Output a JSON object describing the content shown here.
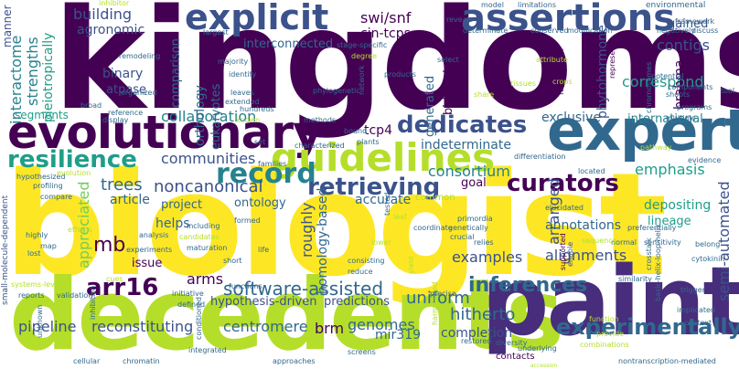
{
  "colors": {
    "background": "#ffffff",
    "kingdoms": "#440154",
    "biologist": "#fde725",
    "decedents": "#b5de2b",
    "paint": "#472d7b",
    "expert": "#31688e",
    "evolutionary": "#440154",
    "guidelines": "#b5de2b",
    "assertions": "#3b528b",
    "explicit": "#3b528b"
  },
  "words": {
    "kingdoms": "kingdoms",
    "biologist": "biologist",
    "decedents": "decedents",
    "paint": "paint",
    "expert": "expert",
    "evolutionary": "evolutionary",
    "guidelines": "guidelines",
    "assertions": "assertions",
    "explicit": "explicit",
    "record": "record",
    "retrieving": "retrieving",
    "dedicates": "dedicates",
    "curators": "curators",
    "resilience": "resilience",
    "experimentally": "experimentally",
    "software_assisted": "software-assisted",
    "arr16": "arr16",
    "inferences": "inferences",
    "hitherto": "hitherto",
    "uniform": "uniform",
    "collaboration": "collaboration",
    "communities": "communities",
    "noncanonical": "noncanonical",
    "trees": "trees",
    "mb": "mb",
    "pipeline": "pipeline",
    "reconstituting": "reconstituting",
    "centromere": "centromere",
    "brm": "brm",
    "genomes": "genomes",
    "mir319": "mir319",
    "completion": "completion",
    "contigs": "contigs",
    "correspond": "correspond",
    "emphasis": "emphasis",
    "consortium": "consortium",
    "depositing": "depositing",
    "alignments": "alignments",
    "examples": "examples",
    "annotations": "annotations",
    "lineage": "lineage",
    "international": "international",
    "exclusive": "exclusive",
    "indeterminate": "indeterminate",
    "building": "building",
    "agronomic": "agronomic",
    "interconnected": "interconnected",
    "swi_snf": "swi/snf",
    "cin_tcps": "cin-tcps",
    "tcp4": "tcp4",
    "arms": "arms",
    "hypothesis_driven": "hypothesis-driven",
    "predictions": "predictions",
    "binary": "binary",
    "atpase": "atpase",
    "helps": "helps",
    "project": "project",
    "article": "article",
    "issue": "issue",
    "ontology": "ontology",
    "accurate": "accurate",
    "goal": "goal",
    "gained": "gained",
    "segments": "segments",
    "manner": "manner",
    "interactome": "interactome",
    "strengths": "strengths",
    "pleiotropically": "pleiotropically",
    "appreciated": "appreciated",
    "comparison": "comparison",
    "orthology": "orthology",
    "eukaryotes": "eukaryotes",
    "roughly": "roughly",
    "homology_based": "homology-based",
    "generated": "generated",
    "bhlh_related": "bhlh-related",
    "arranged": "arranged",
    "phytohormone": "phytohormone",
    "brahma": "brahma",
    "semi_automated": "semi-automated",
    "small_molecule_dependent": "small-molecule-dependent",
    "environmental": "environmental",
    "framework": "framework",
    "negatively": "negatively",
    "discuss": "discuss",
    "largest": "largest",
    "majority": "majority",
    "identify": "identify",
    "leaves": "leaves",
    "extended": "extended",
    "phylogenetic": "phylogenetic",
    "stage_specific": "stage-specific",
    "products": "products",
    "reveals": "reveals",
    "determinate": "determinate",
    "conserved": "conserved",
    "modification": "modification",
    "limitations": "limitations",
    "model": "model",
    "inhibitor": "inhibitor",
    "remodeling": "remodeling",
    "organized": "organized",
    "reference": "reference",
    "display": "display",
    "methods": "methods",
    "bound": "bound",
    "characterized": "characterized",
    "plants": "plants",
    "set": "set",
    "families": "families",
    "hypothesized": "hypothesized",
    "profiling": "profiling",
    "compare": "compare",
    "effects": "effects",
    "highly": "highly",
    "map": "map",
    "lost": "lost",
    "experiments": "experiments",
    "analysis": "analysis",
    "including": "including",
    "candidates": "candidates",
    "maturation": "maturation",
    "formed": "formed",
    "life": "life",
    "short": "short",
    "functions": "functions",
    "initiative": "initiative",
    "defined": "defined",
    "validation": "validation",
    "reports": "reports",
    "systems_level": "systems-level",
    "inhibition": "inhibition",
    "conditioned": "conditioned",
    "integrated": "integrated",
    "unknown": "unknown",
    "cellular": "cellular",
    "chromatin": "chromatin",
    "approaches": "approaches",
    "screens": "screens",
    "restored": "restored",
    "diversity": "diversity",
    "underlying": "underlying",
    "contacts": "contacts",
    "nontranscription_mediated": "nontranscription-mediated",
    "context": "context",
    "implicated": "implicated",
    "trigger": "trigger",
    "similarity": "similarity",
    "crosstalk": "crosstalk",
    "basic_helix_loop_helix": "basic-helix-loop-helix",
    "precise": "precise",
    "consisting": "consisting",
    "reduce": "reduce",
    "relies": "relies",
    "genetically": "genetically",
    "crucial": "crucial",
    "primordia": "primordia",
    "coordinate": "coordinate",
    "tested": "tested",
    "differentiation": "differentiation",
    "common": "common",
    "elucidated": "elucidated",
    "located": "located",
    "preferentially": "preferentially",
    "sensitivity": "sensitivity",
    "belong": "belong",
    "cytokinin": "cytokinin",
    "normal": "normal",
    "supported": "supported",
    "enable": "enable",
    "select": "select",
    "fundamental": "fundamental",
    "share": "share",
    "network": "network",
    "shoots": "shoots",
    "programs": "programs",
    "multiple": "multiple",
    "components": "components",
    "evidence": "evidence",
    "tool": "tool",
    "chromosomes": "chromosomes",
    "potential": "potential",
    "represents": "represents",
    "broad": "broad",
    "hundreds": "hundreds",
    "sequence": "sequence",
    "function": "function",
    "cues": "cues",
    "leaf": "leaf",
    "yield": "yield",
    "harmonised": "harmonised",
    "provide": "provide",
    "combinations": "combinations",
    "crops": "crops",
    "tissues": "tissues",
    "evolution": "evolution",
    "known": "known",
    "pathway": "pathway",
    "degree": "degree",
    "attribute": "attribute",
    "lower": "lower",
    "accession": "accession"
  }
}
